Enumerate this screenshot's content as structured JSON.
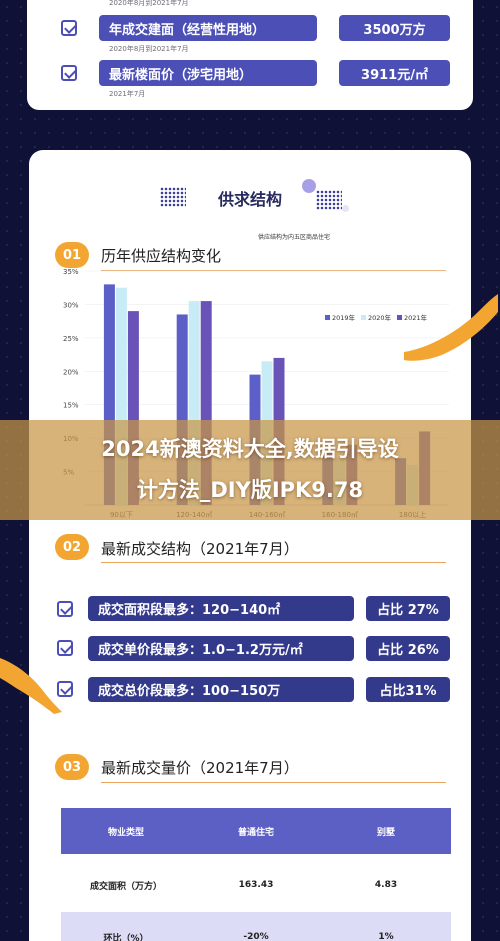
{
  "top_card": {
    "note_1": "2020年8月到2021年7月",
    "note_2": "2020年8月到2021年7月",
    "note_3": "2021年7月",
    "rows": [
      {
        "label": "年成交建面（经营性用地）",
        "value": "3500万方"
      },
      {
        "label": "最新楼面价（涉宅用地）",
        "value": "3911元/㎡"
      }
    ]
  },
  "main_title": "供求结构",
  "section_1": {
    "num": "01",
    "title": "历年供应结构变化",
    "note": "供应结构为内五区商品住宅"
  },
  "chart_data": {
    "type": "bar",
    "title": "",
    "categories": [
      "90以下",
      "120-140㎡",
      "140-160㎡",
      "160-180㎡",
      "180以上"
    ],
    "series": [
      {
        "name": "2019年",
        "values": [
          33,
          28.5,
          19.5,
          8,
          7
        ]
      },
      {
        "name": "2020年",
        "values": [
          32.5,
          30.5,
          21.5,
          7,
          6
        ]
      },
      {
        "name": "2021年",
        "values": [
          29,
          30.5,
          22,
          9,
          11
        ]
      }
    ],
    "yticks": [
      "35%",
      "30%",
      "25%",
      "20%",
      "15%",
      "10%",
      "5%"
    ],
    "ylim": [
      0,
      35
    ],
    "colors": [
      "#5b5fc7",
      "#c8ecf5",
      "#6a53b8"
    ],
    "legend_position": "top-right"
  },
  "banner": {
    "line_1": "2024新澳资料大全,数据引导设",
    "line_2": "计方法_DIY版IPK9.78"
  },
  "section_2": {
    "num": "02",
    "title": "最新成交结构（2021年7月）",
    "rows": [
      {
        "label": "成交面积段最多：120−140㎡",
        "value": "占比 27%"
      },
      {
        "label": "成交单价段最多：1.0−1.2万元/㎡",
        "value": "占比 26%"
      },
      {
        "label": "成交总价段最多：100−150万",
        "value": "占比31%"
      }
    ]
  },
  "section_3": {
    "num": "03",
    "title": "最新成交量价（2021年7月）",
    "table": {
      "headers": [
        "物业类型",
        "普通住宅",
        "别墅"
      ],
      "rows": [
        [
          "成交面积（万方）",
          "163.43",
          "4.83"
        ],
        [
          "环比（%）",
          "-20%",
          "1%"
        ]
      ]
    }
  }
}
